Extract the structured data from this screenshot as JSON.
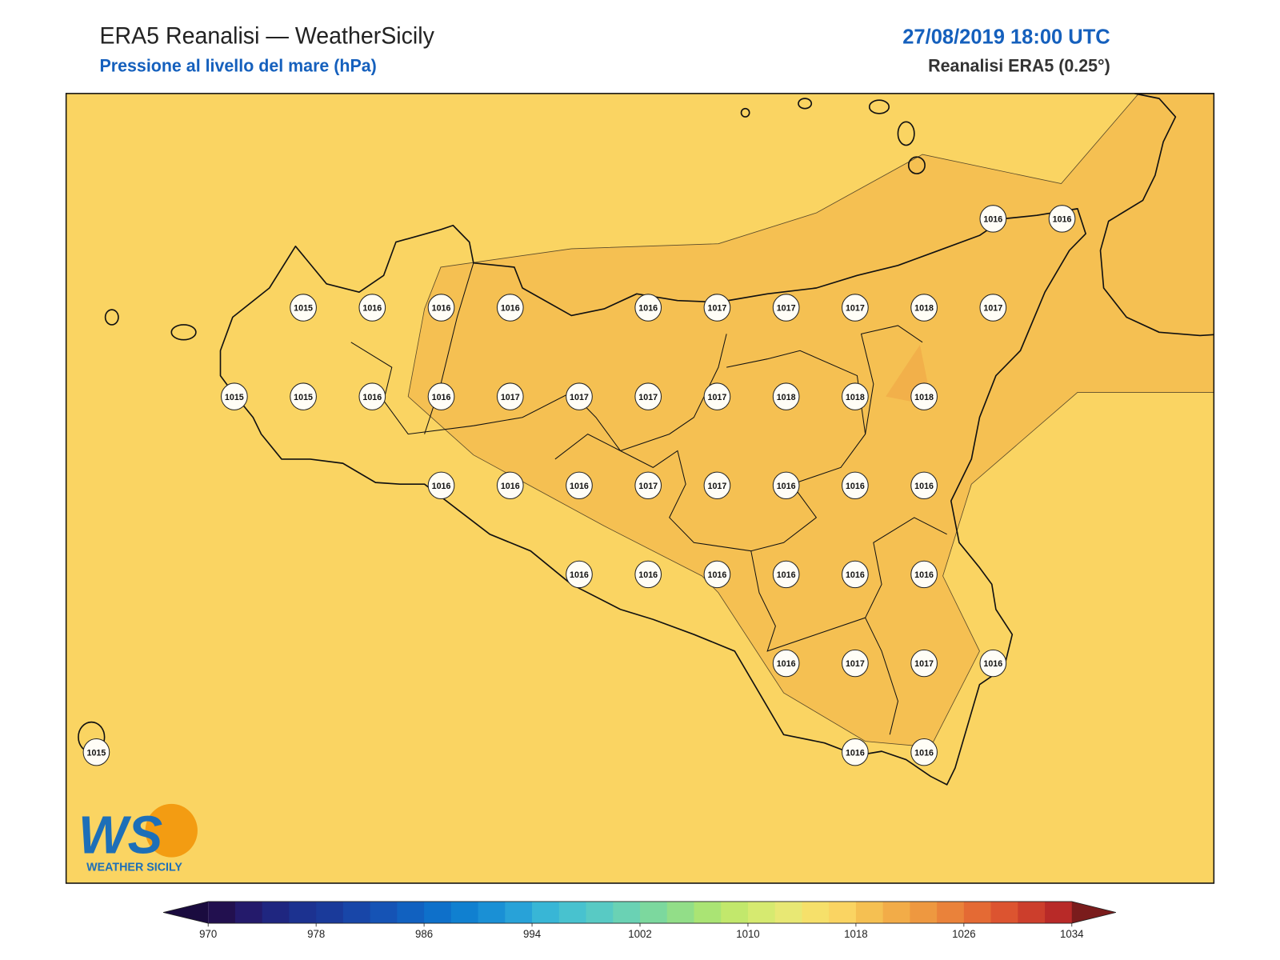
{
  "header": {
    "title": "ERA5 Reanalisi — WeatherSicily",
    "subtitle": "Pressione al livello del mare (hPa)",
    "datetime": "27/08/2019 18:00 UTC",
    "source": "Reanalisi ERA5 (0.25°)"
  },
  "stations": {
    "rows": [
      [
        null,
        null,
        null,
        null,
        null,
        null,
        null,
        null,
        null,
        null,
        null,
        null,
        null,
        1016,
        1016
      ],
      [
        null,
        null,
        null,
        1015,
        1016,
        1016,
        1016,
        null,
        1016,
        1017,
        1017,
        1017,
        1018,
        1017,
        null
      ],
      [
        null,
        null,
        1015,
        1015,
        1016,
        1016,
        1017,
        1017,
        1017,
        1017,
        1018,
        1018,
        1018,
        null,
        null
      ],
      [
        null,
        null,
        null,
        null,
        null,
        1016,
        1016,
        1016,
        1017,
        1017,
        1016,
        1016,
        1016,
        null,
        null
      ],
      [
        null,
        null,
        null,
        null,
        null,
        null,
        null,
        1016,
        1016,
        1016,
        1016,
        1016,
        1016,
        null,
        null
      ],
      [
        null,
        null,
        null,
        null,
        null,
        null,
        null,
        null,
        null,
        null,
        1016,
        1017,
        1017,
        1016,
        null
      ],
      [
        1015,
        null,
        null,
        null,
        null,
        null,
        null,
        null,
        null,
        null,
        null,
        1016,
        1016,
        null,
        null
      ]
    ]
  },
  "colorbar": {
    "lim": [
      970,
      1034
    ],
    "ticks": [
      970,
      978,
      986,
      994,
      1002,
      1010,
      1018,
      1026,
      1034
    ],
    "colors": [
      "#22104f",
      "#241a6b",
      "#1f2680",
      "#1c3290",
      "#1a3a9a",
      "#1846a8",
      "#1553b5",
      "#1161c0",
      "#0e70ca",
      "#1080d0",
      "#1a90d5",
      "#28a2d8",
      "#38b6d6",
      "#48c2cf",
      "#58cac4",
      "#6ad2b4",
      "#7cd89e",
      "#92de88",
      "#aae474",
      "#c2e86c",
      "#d6ea70",
      "#e8e874",
      "#f6e06a",
      "#fad462",
      "#f5c052",
      "#f2ac48",
      "#ee9840",
      "#ea823a",
      "#e46a34",
      "#dc5430",
      "#cc3e2c",
      "#b82a28"
    ],
    "under_color": "#1a0b3f",
    "over_color": "#7a1c1c"
  },
  "logo": {
    "mark": "WS",
    "name": "WEATHER SICILY"
  }
}
